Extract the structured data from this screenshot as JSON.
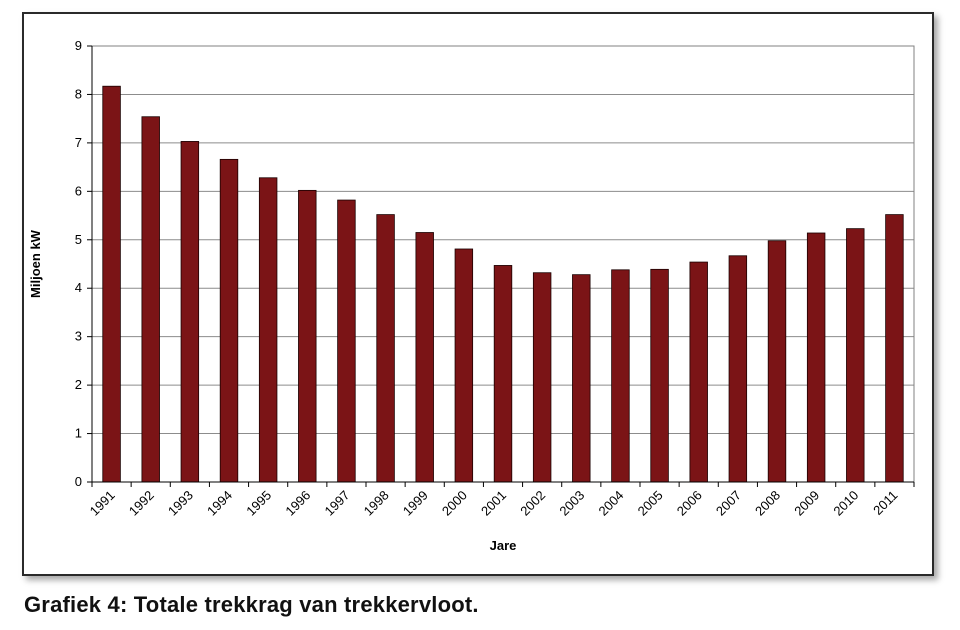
{
  "caption": "Grafiek 4: Totale trekkrag van trekkervloot.",
  "chart_data": {
    "type": "bar",
    "title": "",
    "xlabel": "Jare",
    "ylabel": "Miljoen kW",
    "ylim": [
      0,
      9
    ],
    "yticks": [
      0,
      1,
      2,
      3,
      4,
      5,
      6,
      7,
      8,
      9
    ],
    "grid": true,
    "legend": "none",
    "bar_color": "#7b1416",
    "categories": [
      "1991",
      "1992",
      "1993",
      "1994",
      "1995",
      "1996",
      "1997",
      "1998",
      "1999",
      "2000",
      "2001",
      "2002",
      "2003",
      "2004",
      "2005",
      "2006",
      "2007",
      "2008",
      "2009",
      "2010",
      "2011"
    ],
    "values": [
      8.17,
      7.54,
      7.03,
      6.66,
      6.28,
      6.02,
      5.82,
      5.52,
      5.15,
      4.81,
      4.47,
      4.32,
      4.28,
      4.38,
      4.39,
      4.54,
      4.67,
      4.98,
      5.14,
      5.23,
      5.52
    ]
  }
}
